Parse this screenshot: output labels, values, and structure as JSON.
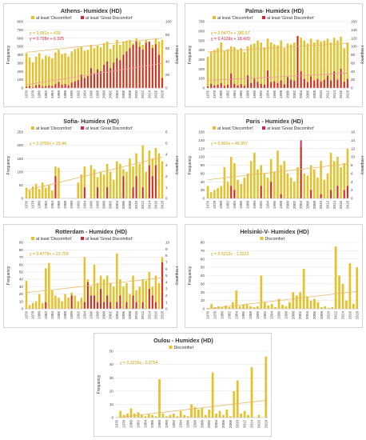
{
  "chart_data": [
    {
      "type": "bar",
      "title": "Athens- Humidex (HD)",
      "ylabel": "Frequency",
      "y2label": "Frequency",
      "ylim": [
        0,
        800
      ],
      "y2lim": [
        0,
        100
      ],
      "yticks": [
        0,
        100,
        200,
        300,
        400,
        500,
        600,
        700,
        800
      ],
      "y2ticks": [
        0,
        20,
        40,
        60,
        80,
        100
      ],
      "legend": [
        "at least 'Discomfort'",
        "at least 'Great Discomfort'"
      ],
      "trend1_label": "y = 3.951x + 439",
      "trend1": [
        430,
        600
      ],
      "trend2_label": "y = 0.728x + 6.325",
      "trend2": [
        5,
        37
      ],
      "x_start": 1976,
      "x_end": 2018,
      "x_step": 2,
      "series": [
        {
          "name": "at least 'Discomfort'",
          "axis": "primary",
          "values": [
            420,
            370,
            310,
            380,
            420,
            350,
            390,
            380,
            360,
            430,
            460,
            410,
            420,
            380,
            440,
            470,
            480,
            500,
            450,
            460,
            520,
            480,
            510,
            490,
            540,
            560,
            470,
            520,
            580,
            520,
            560,
            570,
            580,
            540,
            600,
            560,
            520,
            580,
            560,
            520,
            590,
            560,
            580
          ]
        },
        {
          "name": "at least 'Great Discomfort'",
          "axis": "secondary",
          "values": [
            2,
            3,
            1,
            4,
            5,
            2,
            3,
            4,
            3,
            6,
            9,
            5,
            6,
            4,
            8,
            10,
            12,
            20,
            15,
            18,
            30,
            22,
            28,
            25,
            35,
            40,
            30,
            38,
            45,
            42,
            50,
            55,
            60,
            65,
            70,
            62,
            58,
            68,
            70,
            60,
            66,
            50,
            15
          ]
        }
      ]
    },
    {
      "type": "bar",
      "title": "Palma- Humidex (HD)",
      "ylabel": "Frequency",
      "y2label": "Frequency",
      "ylim": [
        0,
        700
      ],
      "y2lim": [
        0,
        160
      ],
      "yticks": [
        0,
        100,
        200,
        300,
        400,
        500,
        600,
        700
      ],
      "y2ticks": [
        0,
        20,
        40,
        60,
        80,
        100,
        120,
        140,
        160
      ],
      "legend": [
        "at least 'Discomfort'",
        "at least 'Great Discomfort'"
      ],
      "trend1_label": "y = 2.0477x + 380.57",
      "trend1": [
        380,
        470
      ],
      "trend2_label": "y = 0.4129x + 18.429",
      "trend2": [
        18,
        36
      ],
      "x_start": 1976,
      "x_end": 2018,
      "x_step": 2,
      "series": [
        {
          "name": "at least 'Discomfort'",
          "axis": "primary",
          "values": [
            330,
            380,
            400,
            420,
            480,
            390,
            410,
            440,
            430,
            400,
            420,
            380,
            440,
            460,
            470,
            500,
            480,
            430,
            520,
            480,
            460,
            450,
            500,
            420,
            470,
            460,
            480,
            550,
            530,
            500,
            470,
            520,
            480,
            510,
            490,
            500,
            520,
            480,
            530,
            500,
            540,
            420,
            480
          ]
        },
        {
          "name": "at least 'Great Discomfort'",
          "axis": "secondary",
          "values": [
            4,
            10,
            6,
            8,
            12,
            5,
            8,
            35,
            10,
            6,
            9,
            5,
            30,
            12,
            22,
            15,
            10,
            8,
            42,
            14,
            16,
            12,
            18,
            9,
            26,
            20,
            18,
            125,
            40,
            22,
            14,
            28,
            18,
            22,
            16,
            20,
            30,
            18,
            40,
            20,
            46,
            15,
            22
          ]
        }
      ]
    },
    {
      "type": "bar",
      "title": "Sofia- Humidex (HD)",
      "ylabel": "Frequency",
      "y2label": "Frequency",
      "ylim": [
        0,
        250
      ],
      "y2lim": [
        0,
        6
      ],
      "yticks": [
        0,
        50,
        100,
        150,
        200,
        250
      ],
      "y2ticks": [
        0,
        1,
        2,
        3,
        4,
        5,
        6
      ],
      "legend": [
        "at least 'Discomfort'",
        "at least 'Great Discomfort'"
      ],
      "trend1_label": "y = 2.9706x + 29.44",
      "trend1": [
        30,
        155
      ],
      "trend2_label": "",
      "trend2": null,
      "x_start": 1976,
      "x_end": 2018,
      "x_step": 2,
      "series": [
        {
          "name": "at least 'Discomfort'",
          "axis": "primary",
          "values": [
            40,
            30,
            45,
            55,
            35,
            60,
            40,
            50,
            30,
            120,
            115,
            0,
            0,
            0,
            0,
            0,
            60,
            90,
            120,
            0,
            125,
            110,
            80,
            100,
            90,
            130,
            100,
            70,
            140,
            130,
            110,
            100,
            150,
            120,
            170,
            130,
            200,
            100,
            180,
            150,
            190,
            170,
            140
          ]
        },
        {
          "name": "at least 'Great Discomfort'",
          "axis": "secondary",
          "values": [
            0,
            0,
            0,
            0,
            0,
            0,
            0,
            0,
            0,
            2,
            0,
            0,
            0,
            0,
            0,
            0,
            0,
            0,
            1,
            0,
            0,
            0,
            1,
            0,
            0,
            1,
            0,
            0,
            0,
            0,
            2,
            0,
            0,
            1,
            2,
            0,
            1,
            0,
            3,
            2,
            3,
            0,
            0
          ]
        }
      ]
    },
    {
      "type": "bar",
      "title": "Paris - Humidex (HD)",
      "ylabel": "Frequency",
      "y2label": "Frequency",
      "ylim": [
        0,
        160
      ],
      "y2lim": [
        0,
        16
      ],
      "yticks": [
        0,
        20,
        40,
        60,
        80,
        100,
        120,
        140,
        160
      ],
      "y2ticks": [
        0,
        2,
        4,
        6,
        8,
        10,
        12,
        14,
        16
      ],
      "legend": [
        "at least 'Discomfort'",
        "at least 'Great Discomfort'"
      ],
      "trend1_label": "y = 0.901x + 45.357",
      "trend1": [
        45,
        83
      ],
      "trend2_label": "",
      "trend2": null,
      "x_start": 1976,
      "x_end": 2018,
      "x_step": 2,
      "series": [
        {
          "name": "at least 'Discomfort'",
          "axis": "primary",
          "values": [
            30,
            15,
            20,
            25,
            30,
            75,
            40,
            100,
            85,
            45,
            35,
            50,
            60,
            90,
            110,
            70,
            80,
            60,
            50,
            95,
            65,
            115,
            80,
            90,
            60,
            50,
            40,
            75,
            125,
            60,
            55,
            80,
            70,
            50,
            90,
            45,
            60,
            110,
            90,
            100,
            75,
            85,
            120
          ]
        },
        {
          "name": "at least 'Great Discomfort'",
          "axis": "secondary",
          "values": [
            0,
            0,
            0,
            0,
            0,
            0,
            0,
            3,
            2,
            0,
            0,
            0,
            0,
            0,
            0,
            0,
            3,
            0,
            0,
            4,
            0,
            0,
            1,
            0,
            0,
            0,
            0,
            0,
            14,
            0,
            0,
            2,
            0,
            0,
            1,
            0,
            0,
            2,
            0,
            3,
            0,
            2,
            3
          ]
        }
      ]
    },
    {
      "type": "bar",
      "title": "Rotterdam - Humidex (HD)",
      "ylabel": "Frequency",
      "y2label": "Frequency",
      "ylim": [
        0,
        90
      ],
      "y2lim": [
        0,
        10
      ],
      "yticks": [
        0,
        10,
        20,
        30,
        40,
        50,
        60,
        70,
        80,
        90
      ],
      "y2ticks": [
        0,
        1,
        2,
        3,
        4,
        5,
        6,
        7,
        8,
        9,
        10
      ],
      "legend": [
        "at least 'Discomfort'",
        "at least 'Great Discomfort'"
      ],
      "trend1_label": "y = 0.4779x + 21.759",
      "trend1": [
        22,
        42
      ],
      "trend2_label": "",
      "trend2": null,
      "x_start": 1976,
      "x_end": 2018,
      "x_step": 2,
      "series": [
        {
          "name": "at least 'Discomfort'",
          "axis": "primary",
          "values": [
            38,
            5,
            8,
            10,
            20,
            8,
            55,
            62,
            25,
            18,
            15,
            10,
            20,
            15,
            22,
            18,
            10,
            15,
            70,
            40,
            30,
            60,
            35,
            45,
            40,
            45,
            35,
            30,
            75,
            40,
            30,
            35,
            20,
            45,
            25,
            30,
            40,
            38,
            50,
            30,
            45,
            35,
            70
          ]
        },
        {
          "name": "at least 'Great Discomfort'",
          "axis": "secondary",
          "values": [
            0,
            0,
            0,
            0,
            0,
            0,
            1,
            0,
            0,
            0,
            0,
            0,
            0,
            0,
            2,
            0,
            0,
            0,
            1,
            4,
            2,
            2,
            1,
            3,
            1,
            2,
            1,
            0,
            1,
            2,
            0,
            1,
            0,
            2,
            1,
            0,
            1,
            0,
            3,
            2,
            1,
            0,
            7
          ]
        }
      ]
    },
    {
      "type": "bar",
      "title": "Helsinki-V- Humidex (HD)",
      "ylabel": "Frequency",
      "ylim": [
        0,
        80
      ],
      "yticks": [
        0,
        10,
        20,
        30,
        40,
        50,
        60,
        70,
        80
      ],
      "legend": [
        "Discomfort"
      ],
      "trend1_label": "y = 0.5213x - 1.3223",
      "trend1": [
        0,
        21
      ],
      "x_start": 1976,
      "x_end": 2018,
      "x_step": 2,
      "series": [
        {
          "name": "Discomfort",
          "axis": "primary",
          "values": [
            1,
            6,
            2,
            3,
            2,
            4,
            2,
            8,
            22,
            3,
            5,
            6,
            3,
            2,
            3,
            40,
            8,
            4,
            6,
            2,
            12,
            5,
            3,
            8,
            20,
            16,
            20,
            48,
            15,
            10,
            12,
            8,
            2,
            3,
            1,
            2,
            75,
            40,
            30,
            10,
            55,
            6,
            50
          ]
        }
      ]
    },
    {
      "type": "bar",
      "title": "Oulou - Humidex (HD)",
      "ylabel": "Frequency",
      "ylim": [
        0,
        50
      ],
      "yticks": [
        0,
        10,
        20,
        30,
        40,
        50
      ],
      "legend": [
        "Discomfort"
      ],
      "trend1_label": "y = 0.3215x - 0.3754",
      "trend1": [
        0,
        13
      ],
      "x_start": 1976,
      "x_end": 2018,
      "x_step": 2,
      "series": [
        {
          "name": "Discomfort",
          "axis": "primary",
          "values": [
            0,
            5,
            2,
            3,
            7,
            3,
            4,
            2,
            1,
            3,
            2,
            1,
            29,
            3,
            1,
            2,
            3,
            1,
            5,
            2,
            1,
            10,
            8,
            6,
            7,
            2,
            6,
            34,
            3,
            5,
            2,
            6,
            1,
            20,
            28,
            3,
            5,
            2,
            38,
            0,
            2,
            0,
            46
          ]
        }
      ]
    }
  ]
}
